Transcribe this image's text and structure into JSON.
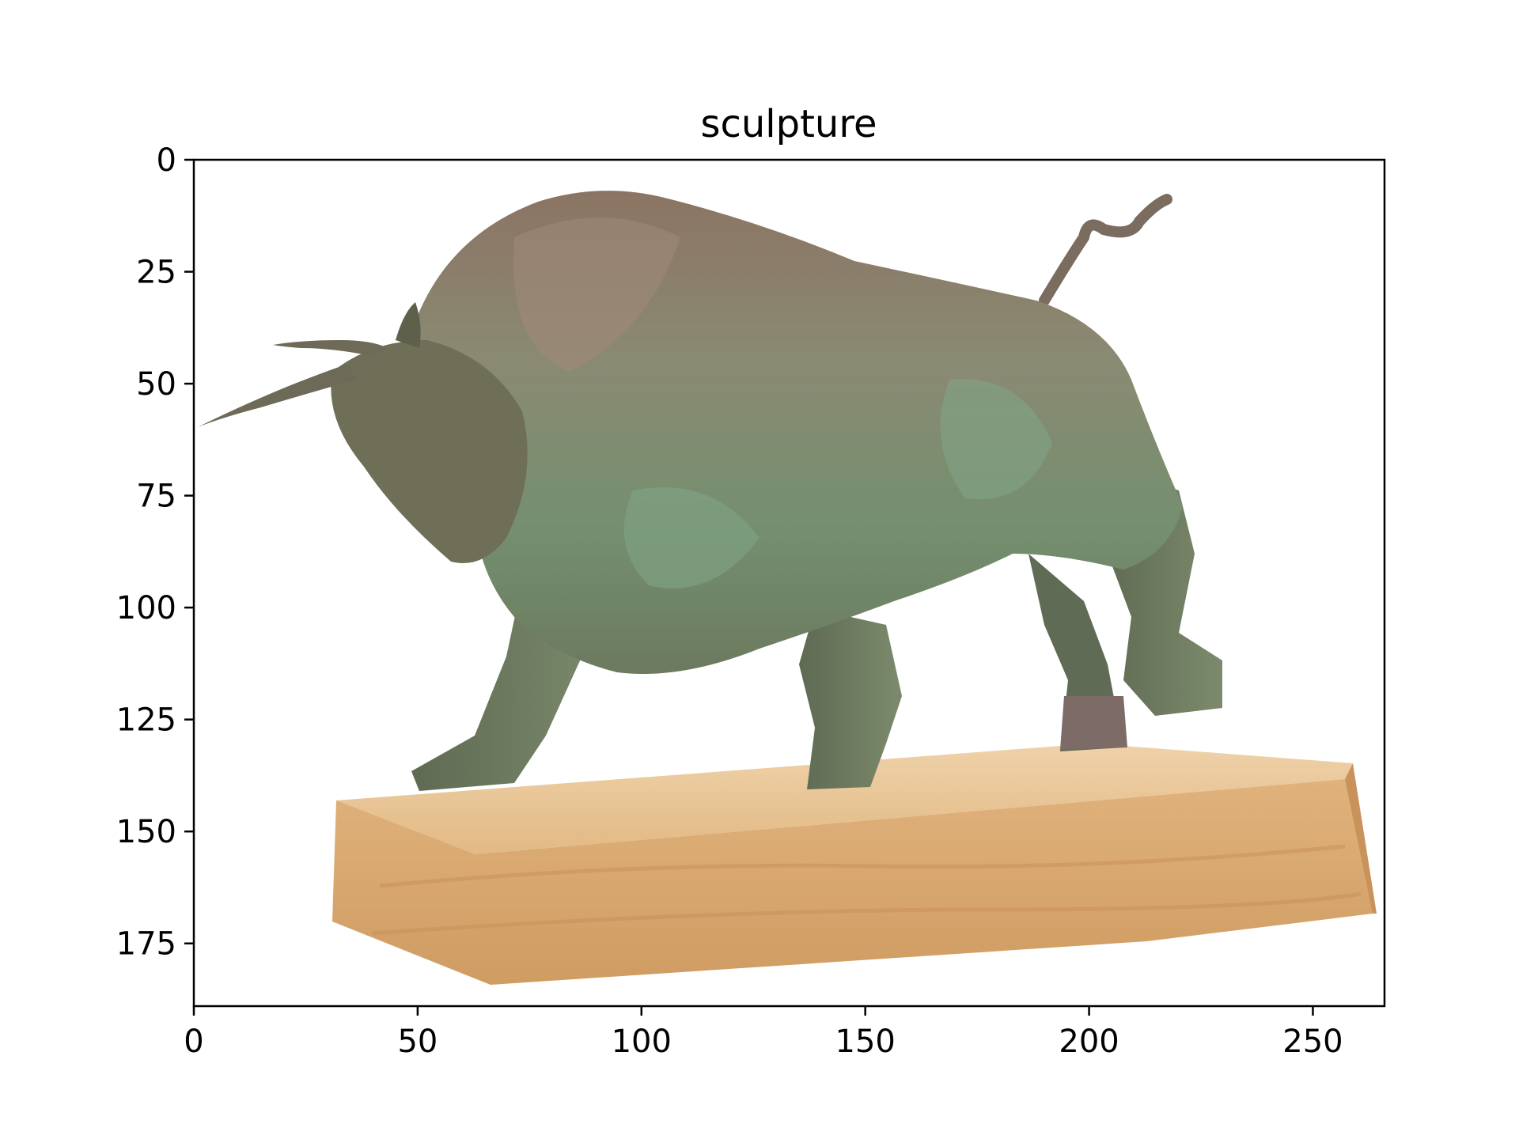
{
  "figure": {
    "title": "sculpture",
    "subject": "bronze-bull-sculpture-on-wooden-base",
    "x_axis": {
      "range": [
        0,
        266
      ],
      "ticks": [
        0,
        50,
        100,
        150,
        200,
        250
      ],
      "tick_labels": [
        "0",
        "50",
        "100",
        "150",
        "200",
        "250"
      ]
    },
    "y_axis": {
      "range": [
        189,
        0
      ],
      "inverted": true,
      "ticks": [
        0,
        25,
        50,
        75,
        100,
        125,
        150,
        175
      ],
      "tick_labels": [
        "0",
        "25",
        "50",
        "75",
        "100",
        "125",
        "150",
        "175"
      ]
    },
    "colors": {
      "bronze_green": "#7e9170",
      "bronze_brown": "#8a7560",
      "base_wood": "#d9a972",
      "background": "#ffffff"
    }
  }
}
